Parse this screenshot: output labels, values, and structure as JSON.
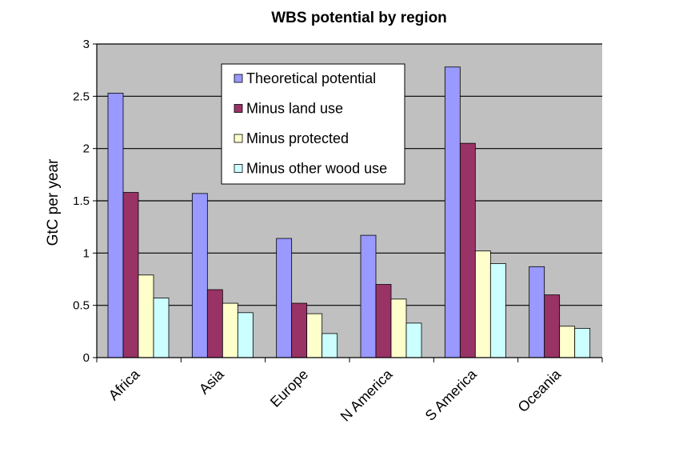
{
  "chart_data": {
    "type": "bar",
    "title": "WBS potential by region",
    "ylabel": "GtC per year",
    "xlabel": "",
    "ylim": [
      0,
      3
    ],
    "yticks": [
      0,
      0.5,
      1,
      1.5,
      2,
      2.5,
      3
    ],
    "ytick_labels": [
      "0",
      "0.5",
      "1",
      "1.5",
      "2",
      "2.5",
      "3"
    ],
    "grid": true,
    "legend_position": "top-center",
    "categories": [
      "Africa",
      "Asia",
      "Europe",
      "N America",
      "S America",
      "Oceania"
    ],
    "series": [
      {
        "name": "Theoretical potential",
        "color": "#9999ff",
        "values": [
          2.53,
          1.57,
          1.14,
          1.17,
          2.78,
          0.87
        ]
      },
      {
        "name": "Minus land use",
        "color": "#993366",
        "values": [
          1.58,
          0.65,
          0.52,
          0.7,
          2.05,
          0.6
        ]
      },
      {
        "name": "Minus protected",
        "color": "#ffffcc",
        "values": [
          0.79,
          0.52,
          0.42,
          0.56,
          1.02,
          0.3
        ]
      },
      {
        "name": "Minus other wood use",
        "color": "#ccffff",
        "values": [
          0.57,
          0.43,
          0.23,
          0.33,
          0.9,
          0.28
        ]
      }
    ],
    "plot_background": "#c0c0c0"
  }
}
